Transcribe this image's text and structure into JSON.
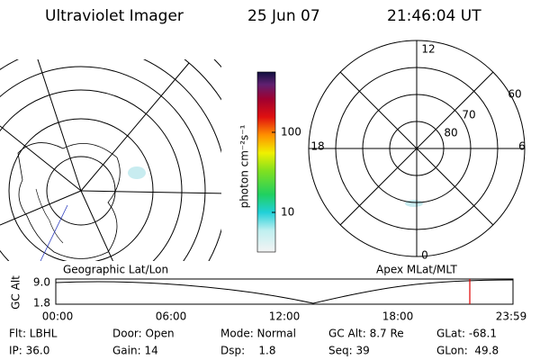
{
  "header": {
    "title": "Ultraviolet Imager",
    "date": "25 Jun 07",
    "time": "21:46:04 UT"
  },
  "colorbar": {
    "label": "photon cm⁻²s⁻¹",
    "ticks": [
      "100",
      "10"
    ]
  },
  "polar": {
    "labels": [
      "12",
      "0",
      "18",
      "6",
      "60",
      "70",
      "80"
    ]
  },
  "maps": {
    "left_caption": "Geographic Lat/Lon",
    "right_caption": "Apex MLat/MLT"
  },
  "altitude_plot": {
    "ylabel": "GC Alt",
    "yticks": [
      "9.0",
      "1.8"
    ],
    "xticks": [
      "00:00",
      "06:00",
      "12:00",
      "18:00",
      "23:59"
    ]
  },
  "status": {
    "rows": [
      [
        "Flt: LBHL",
        "Door: Open",
        "Mode: Normal",
        "GC Alt: 8.7 Re",
        "GLat: -68.1"
      ],
      [
        "IP: 36.0",
        "Gain: 14",
        "Dsp:    1.8",
        "Seq: 39",
        "GLon:  49.8"
      ]
    ]
  }
}
